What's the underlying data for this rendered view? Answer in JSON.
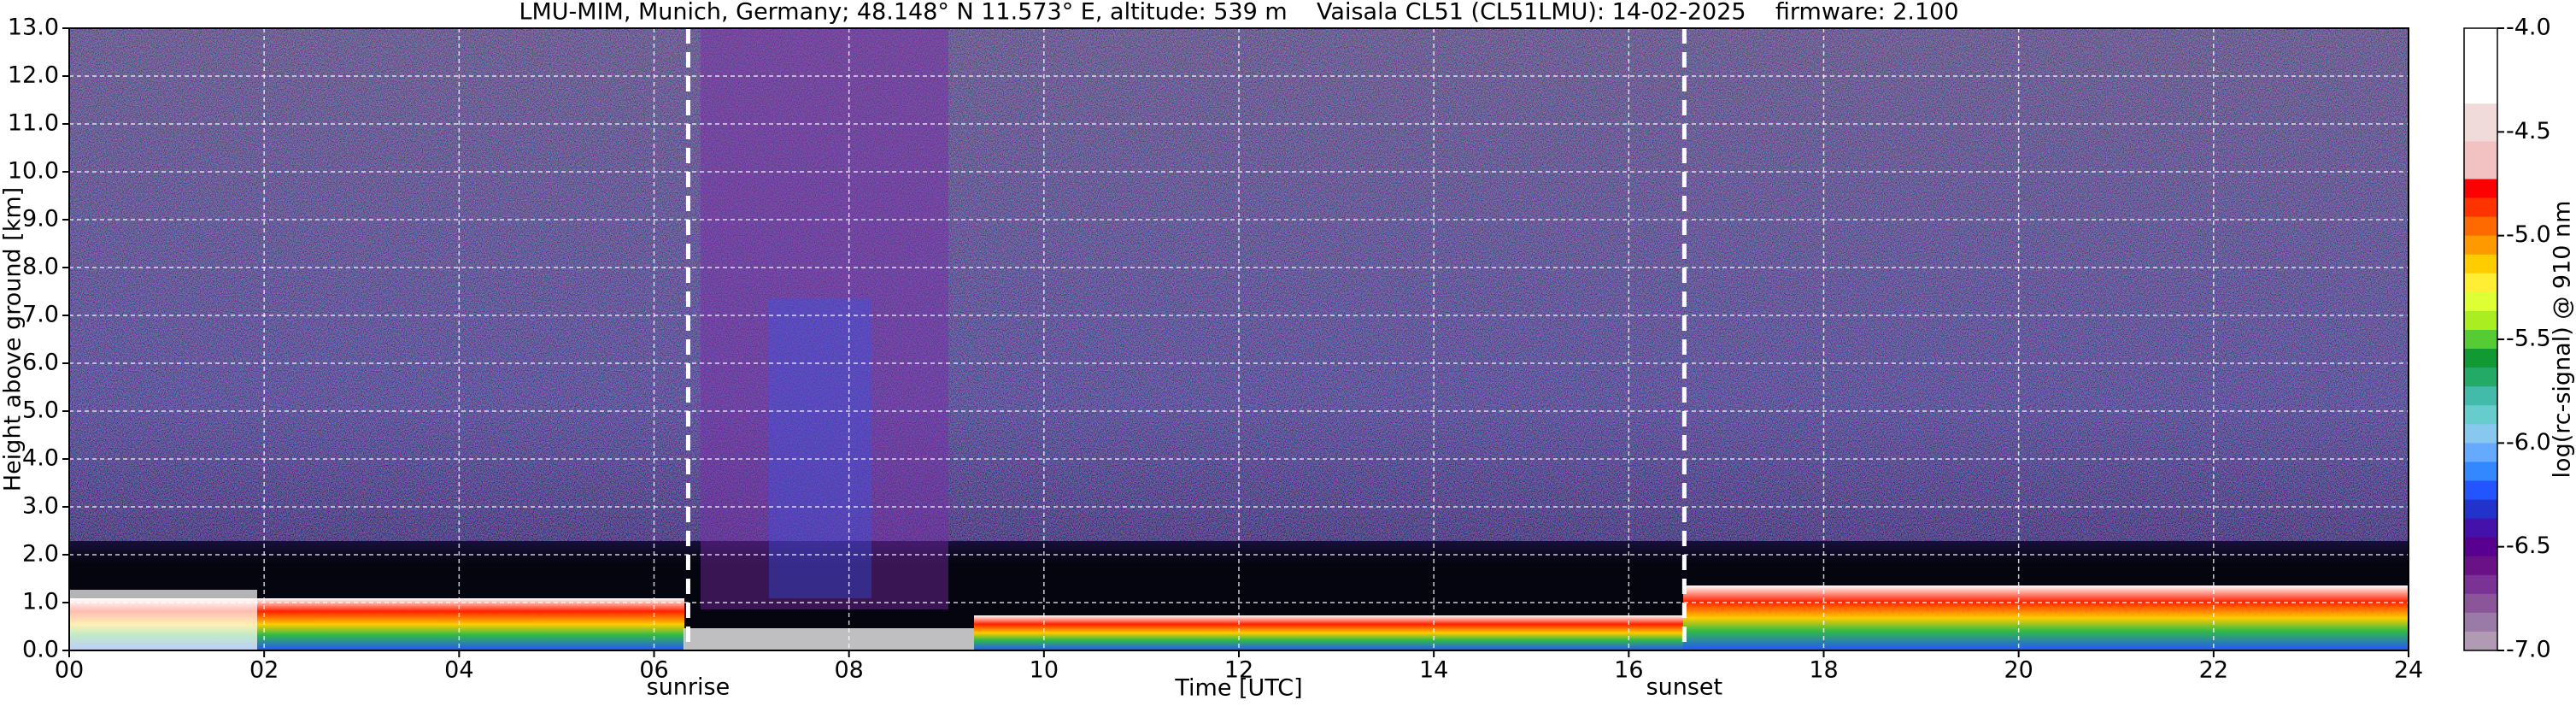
{
  "chart_data": {
    "type": "heatmap",
    "title": "LMU-MIM, Munich, Germany; 48.148° N 11.573° E, altitude: 539 m    Vaisala CL51 (CL51LMU): 14-02-2025    firmware: 2.100",
    "x_label": "Time [UTC]",
    "y_label": "Height above ground [km]",
    "colorbar_label": "log(rc-signal) @ 910 nm",
    "xlim": [
      0,
      24
    ],
    "xticks": [
      {
        "value": 0,
        "label": "00"
      },
      {
        "value": 2,
        "label": "02"
      },
      {
        "value": 4,
        "label": "04"
      },
      {
        "value": 6,
        "label": "06"
      },
      {
        "value": 8,
        "label": "08"
      },
      {
        "value": 10,
        "label": "10"
      },
      {
        "value": 12,
        "label": "12"
      },
      {
        "value": 14,
        "label": "14"
      },
      {
        "value": 16,
        "label": "16"
      },
      {
        "value": 18,
        "label": "18"
      },
      {
        "value": 20,
        "label": "20"
      },
      {
        "value": 22,
        "label": "22"
      },
      {
        "value": 24,
        "label": "24"
      }
    ],
    "ylim": [
      0,
      13
    ],
    "yticks": [
      {
        "value": 0,
        "label": "0.0"
      },
      {
        "value": 1,
        "label": "1.0"
      },
      {
        "value": 2,
        "label": "2.0"
      },
      {
        "value": 3,
        "label": "3.0"
      },
      {
        "value": 4,
        "label": "4.0"
      },
      {
        "value": 5,
        "label": "5.0"
      },
      {
        "value": 6,
        "label": "6.0"
      },
      {
        "value": 7,
        "label": "7.0"
      },
      {
        "value": 8,
        "label": "8.0"
      },
      {
        "value": 9,
        "label": "9.0"
      },
      {
        "value": 10,
        "label": "10.0"
      },
      {
        "value": 11,
        "label": "11.0"
      },
      {
        "value": 12,
        "label": "12.0"
      },
      {
        "value": 13,
        "label": "13.0"
      }
    ],
    "clim": [
      -7,
      -4
    ],
    "cticks": [
      {
        "value": -4,
        "label": "-4.0"
      },
      {
        "value": -4.5,
        "label": "-4.5"
      },
      {
        "value": -5,
        "label": "-5.0"
      },
      {
        "value": -5.5,
        "label": "-5.5"
      },
      {
        "value": -6,
        "label": "-6.0"
      },
      {
        "value": -6.5,
        "label": "-6.5"
      },
      {
        "value": -7,
        "label": "-7.0"
      }
    ],
    "colormap": [
      "#ffffff",
      "#ffffff",
      "#ffffff",
      "#ffffff",
      "#f0dada",
      "#f0dada",
      "#f2c2c2",
      "#f2c2c2",
      "#ff0000",
      "#ff3300",
      "#ff6a00",
      "#ff9900",
      "#ffcc00",
      "#ffee33",
      "#ddff33",
      "#aaee22",
      "#55cc33",
      "#119933",
      "#22aa66",
      "#44bbaa",
      "#66cccc",
      "#88c8ee",
      "#66aaff",
      "#3388ff",
      "#2255ff",
      "#2233cc",
      "#4411aa",
      "#5a0090",
      "#6a1188",
      "#7a3394",
      "#8a5599",
      "#9a7aa6",
      "#b09ab4"
    ],
    "grid": true,
    "markers": [
      {
        "label": "sunrise",
        "x": 6.35
      },
      {
        "label": "sunset",
        "x": 16.57
      }
    ]
  }
}
